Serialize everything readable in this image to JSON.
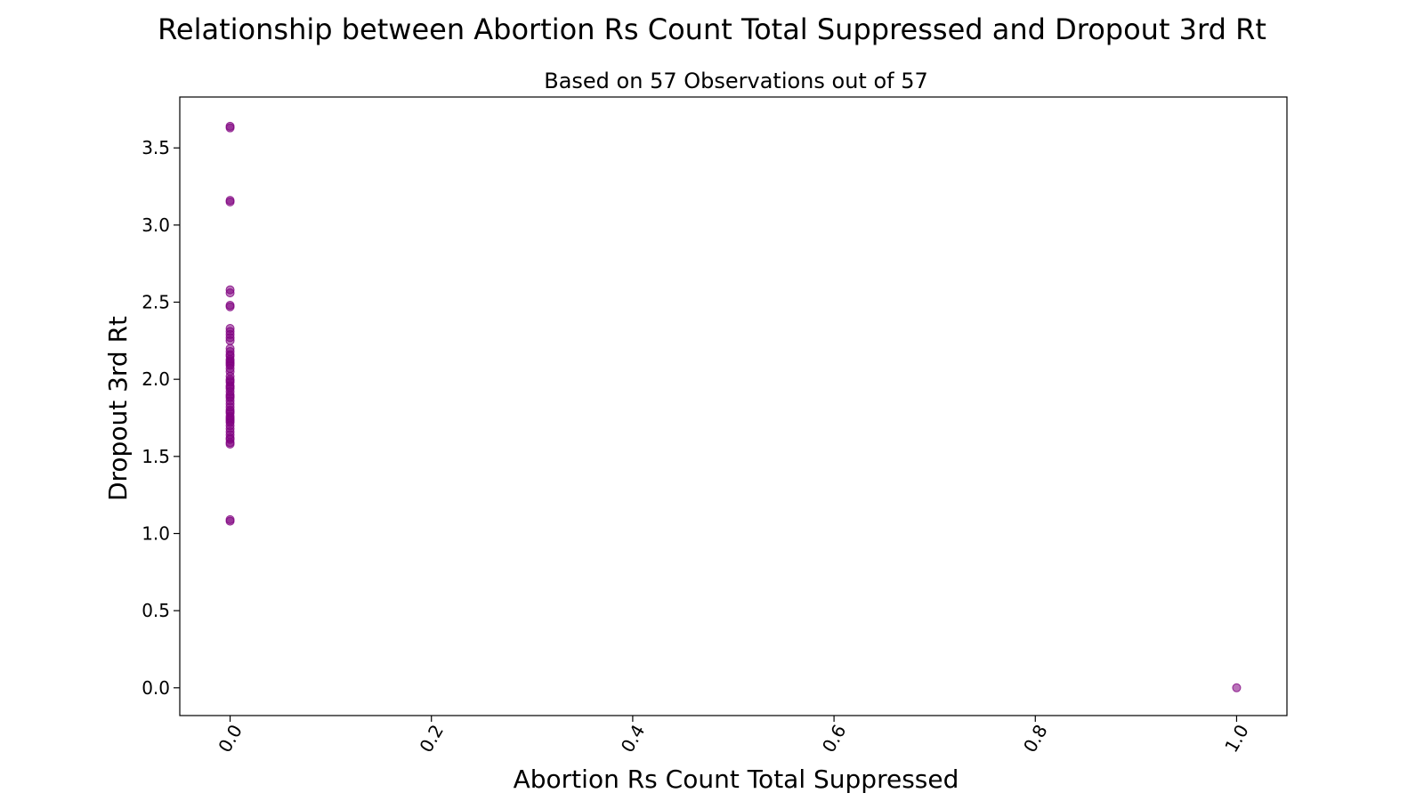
{
  "chart_data": {
    "type": "scatter",
    "title": "Relationship between Abortion Rs Count Total Suppressed and Dropout 3rd Rt",
    "subtitle": "Based on 57 Observations out of 57",
    "xlabel": "Abortion Rs Count Total Suppressed",
    "ylabel": "Dropout 3rd Rt",
    "xlim": [
      -0.05,
      1.05
    ],
    "ylim": [
      -0.18,
      3.83
    ],
    "x_ticks": [
      0.0,
      0.2,
      0.4,
      0.6,
      0.8,
      1.0
    ],
    "x_tick_labels": [
      "0.0",
      "0.2",
      "0.4",
      "0.6",
      "0.8",
      "1.0"
    ],
    "y_ticks": [
      0.0,
      0.5,
      1.0,
      1.5,
      2.0,
      2.5,
      3.0,
      3.5
    ],
    "y_tick_labels": [
      "0.0",
      "0.5",
      "1.0",
      "1.5",
      "2.0",
      "2.5",
      "3.0",
      "3.5"
    ],
    "x_tick_rotation_deg": -60,
    "grid": false,
    "legend": "none",
    "marker_color": "#800080",
    "marker_alpha": 0.55,
    "points": [
      {
        "x": 0,
        "y": 3.64
      },
      {
        "x": 0,
        "y": 3.63
      },
      {
        "x": 0,
        "y": 3.16
      },
      {
        "x": 0,
        "y": 3.15
      },
      {
        "x": 0,
        "y": 2.58
      },
      {
        "x": 0,
        "y": 2.56
      },
      {
        "x": 0,
        "y": 2.48
      },
      {
        "x": 0,
        "y": 2.47
      },
      {
        "x": 0,
        "y": 2.33
      },
      {
        "x": 0,
        "y": 2.31
      },
      {
        "x": 0,
        "y": 2.29
      },
      {
        "x": 0,
        "y": 2.27
      },
      {
        "x": 0,
        "y": 2.25
      },
      {
        "x": 0,
        "y": 2.2
      },
      {
        "x": 0,
        "y": 2.18
      },
      {
        "x": 0,
        "y": 2.16
      },
      {
        "x": 0,
        "y": 2.15
      },
      {
        "x": 0,
        "y": 2.13
      },
      {
        "x": 0,
        "y": 2.11
      },
      {
        "x": 0,
        "y": 2.1
      },
      {
        "x": 0,
        "y": 2.09
      },
      {
        "x": 0,
        "y": 2.07
      },
      {
        "x": 0,
        "y": 2.05
      },
      {
        "x": 0,
        "y": 2.02
      },
      {
        "x": 0,
        "y": 2.0
      },
      {
        "x": 0,
        "y": 1.99
      },
      {
        "x": 0,
        "y": 1.98
      },
      {
        "x": 0,
        "y": 1.96
      },
      {
        "x": 0,
        "y": 1.95
      },
      {
        "x": 0,
        "y": 1.94
      },
      {
        "x": 0,
        "y": 1.92
      },
      {
        "x": 0,
        "y": 1.9
      },
      {
        "x": 0,
        "y": 1.89
      },
      {
        "x": 0,
        "y": 1.88
      },
      {
        "x": 0,
        "y": 1.86
      },
      {
        "x": 0,
        "y": 1.84
      },
      {
        "x": 0,
        "y": 1.82
      },
      {
        "x": 0,
        "y": 1.8
      },
      {
        "x": 0,
        "y": 1.79
      },
      {
        "x": 0,
        "y": 1.78
      },
      {
        "x": 0,
        "y": 1.76
      },
      {
        "x": 0,
        "y": 1.75
      },
      {
        "x": 0,
        "y": 1.74
      },
      {
        "x": 0,
        "y": 1.73
      },
      {
        "x": 0,
        "y": 1.72
      },
      {
        "x": 0,
        "y": 1.7
      },
      {
        "x": 0,
        "y": 1.68
      },
      {
        "x": 0,
        "y": 1.66
      },
      {
        "x": 0,
        "y": 1.64
      },
      {
        "x": 0,
        "y": 1.62
      },
      {
        "x": 0,
        "y": 1.61
      },
      {
        "x": 0,
        "y": 1.59
      },
      {
        "x": 0,
        "y": 1.58
      },
      {
        "x": 0,
        "y": 1.09
      },
      {
        "x": 0,
        "y": 1.08
      },
      {
        "x": 0,
        "y": 2.12
      },
      {
        "x": 1,
        "y": 0.0
      }
    ]
  }
}
